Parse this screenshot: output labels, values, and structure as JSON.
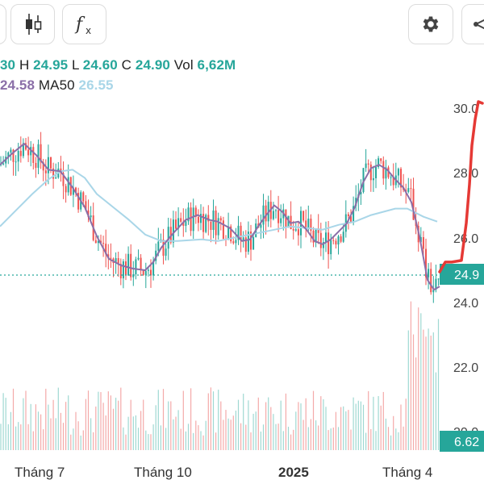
{
  "toolbar": {
    "buttons": [
      {
        "name": "candlestick-icon"
      },
      {
        "name": "function-icon"
      },
      {
        "name": "gear-icon"
      },
      {
        "name": "share-icon"
      }
    ]
  },
  "legend": {
    "o_value": "30",
    "h_label": "H",
    "h_value": "24.95",
    "l_label": "L",
    "l_value": "24.60",
    "c_label": "C",
    "c_value": "24.90",
    "vol_label": "Vol",
    "vol_value": "6,62M",
    "ma20_value": "24.58",
    "ma50_label": "MA50",
    "ma50_value": "26.55"
  },
  "colors": {
    "up": "#26a69a",
    "down": "#ef5350",
    "ma20": "#8b6fa8",
    "ma50": "#a9d6e8",
    "price_badge": "#26a69a",
    "annotation": "#e53935"
  },
  "chart_data": {
    "type": "candlestick",
    "y_axis": {
      "ylim": [
        20,
        30.7
      ],
      "ticks": [
        "30.0",
        "28.0",
        "26.0",
        "24.0",
        "22.0",
        "20.0"
      ]
    },
    "x_axis": {
      "ticks": [
        "Tháng 7",
        "Tháng 10",
        "2025",
        "Tháng 4"
      ]
    },
    "last_price": "24.9",
    "last_volume": "6.62",
    "series_ma50": [
      [
        0,
        26.4
      ],
      [
        20,
        26.9
      ],
      [
        40,
        27.4
      ],
      [
        60,
        27.85
      ],
      [
        75,
        28.1
      ],
      [
        90,
        28.15
      ],
      [
        105,
        27.9
      ],
      [
        120,
        27.4
      ],
      [
        140,
        27.0
      ],
      [
        160,
        26.6
      ],
      [
        180,
        26.15
      ],
      [
        200,
        25.95
      ],
      [
        220,
        25.95
      ],
      [
        250,
        26.0
      ],
      [
        270,
        25.95
      ],
      [
        300,
        26.1
      ],
      [
        330,
        26.25
      ],
      [
        360,
        26.4
      ],
      [
        380,
        26.35
      ],
      [
        400,
        26.3
      ],
      [
        420,
        26.45
      ],
      [
        440,
        26.55
      ],
      [
        460,
        26.75
      ],
      [
        490,
        26.95
      ],
      [
        505,
        26.95
      ],
      [
        525,
        26.7
      ],
      [
        542,
        26.55
      ]
    ],
    "series_ma20": [
      [
        0,
        28.3
      ],
      [
        15,
        28.65
      ],
      [
        30,
        28.95
      ],
      [
        45,
        28.6
      ],
      [
        60,
        28.15
      ],
      [
        75,
        28.1
      ],
      [
        90,
        27.6
      ],
      [
        105,
        27.0
      ],
      [
        120,
        26.1
      ],
      [
        135,
        25.4
      ],
      [
        150,
        25.2
      ],
      [
        165,
        25.1
      ],
      [
        180,
        25.05
      ],
      [
        190,
        25.3
      ],
      [
        200,
        25.75
      ],
      [
        215,
        26.2
      ],
      [
        230,
        26.6
      ],
      [
        245,
        26.75
      ],
      [
        260,
        26.6
      ],
      [
        270,
        26.55
      ],
      [
        285,
        26.35
      ],
      [
        300,
        25.95
      ],
      [
        310,
        26.0
      ],
      [
        320,
        26.4
      ],
      [
        330,
        26.75
      ],
      [
        340,
        27.05
      ],
      [
        350,
        26.85
      ],
      [
        360,
        26.5
      ],
      [
        370,
        26.55
      ],
      [
        380,
        26.3
      ],
      [
        390,
        25.95
      ],
      [
        400,
        25.85
      ],
      [
        410,
        26.0
      ],
      [
        420,
        26.25
      ],
      [
        430,
        26.5
      ],
      [
        440,
        27.0
      ],
      [
        450,
        27.75
      ],
      [
        460,
        28.2
      ],
      [
        470,
        28.3
      ],
      [
        480,
        28.15
      ],
      [
        490,
        27.85
      ],
      [
        500,
        27.6
      ],
      [
        510,
        27.15
      ],
      [
        520,
        26.1
      ],
      [
        530,
        24.75
      ],
      [
        538,
        24.45
      ],
      [
        545,
        24.55
      ]
    ],
    "annotation_path": [
      [
        545,
        25.0
      ],
      [
        552,
        25.3
      ],
      [
        560,
        25.3
      ],
      [
        572,
        25.35
      ],
      [
        578,
        26.5
      ],
      [
        582,
        27.7
      ],
      [
        585,
        28.9
      ],
      [
        589,
        29.7
      ],
      [
        593,
        30.25
      ],
      [
        598,
        30.2
      ]
    ]
  }
}
